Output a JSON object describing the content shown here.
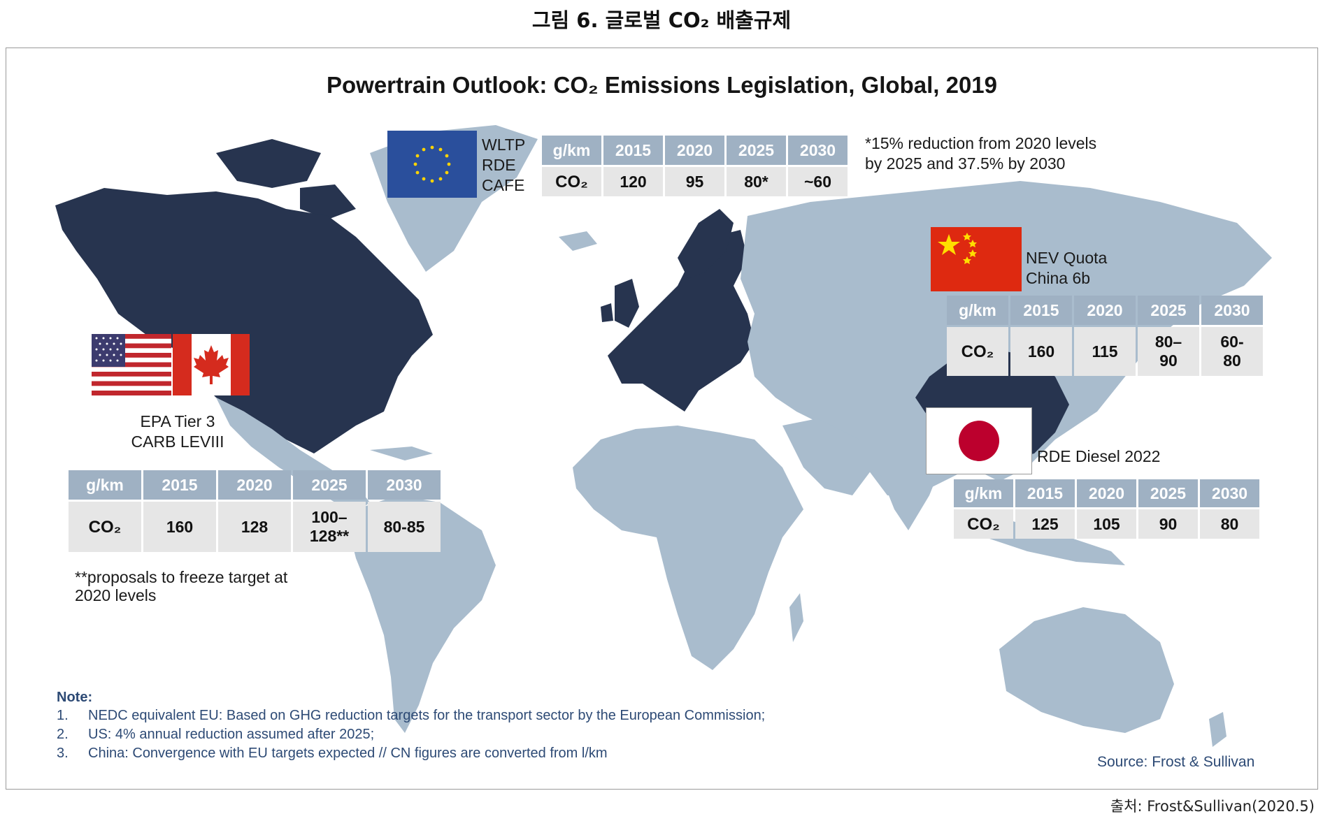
{
  "figure_title": "그림 6. 글로벌 CO₂ 배출규제",
  "chart_title": "Powertrain Outlook: CO₂ Emissions Legislation, Global, 2019",
  "colors": {
    "regulated": "#27344f",
    "land": "#a9bccd",
    "header": "#9fb1c3",
    "cell": "#e6e6e6",
    "note_text": "#2d4a75"
  },
  "eu": {
    "labels": [
      "WLTP",
      "RDE",
      "CAFE"
    ],
    "table": {
      "header": [
        "g/km",
        "2015",
        "2020",
        "2025",
        "2030"
      ],
      "row": [
        "CO₂",
        "120",
        "95",
        "80*",
        "~60"
      ]
    },
    "note": [
      "*15% reduction from 2020 levels",
      "by 2025 and 37.5% by 2030"
    ]
  },
  "china": {
    "labels": [
      "NEV Quota",
      "China 6b"
    ],
    "table": {
      "header": [
        "g/km",
        "2015",
        "2020",
        "2025",
        "2030"
      ],
      "row": [
        "CO₂",
        "160",
        "115",
        "80–\n90",
        "60-\n80"
      ]
    }
  },
  "us_canada": {
    "labels": [
      "EPA Tier 3",
      "CARB LEVIII"
    ],
    "table": {
      "header": [
        "g/km",
        "2015",
        "2020",
        "2025",
        "2030"
      ],
      "row": [
        "CO₂",
        "160",
        "128",
        "100–\n128**",
        "80-85"
      ]
    },
    "note": [
      "**proposals to freeze target at",
      "2020 levels"
    ]
  },
  "japan": {
    "label": "RDE Diesel 2022",
    "table": {
      "header": [
        "g/km",
        "2015",
        "2020",
        "2025",
        "2030"
      ],
      "row": [
        "CO₂",
        "125",
        "105",
        "90",
        "80"
      ]
    }
  },
  "notes": {
    "heading": "Note:",
    "items": [
      {
        "num": "1.",
        "text": "NEDC equivalent EU: Based on GHG reduction targets for the transport sector by the European Commission;"
      },
      {
        "num": "2.",
        "text": "US: 4% annual reduction assumed after 2025;"
      },
      {
        "num": "3.",
        "text": "China: Convergence with EU targets expected // CN figures are converted from l/km"
      }
    ]
  },
  "source": "Source: Frost & Sullivan",
  "footer": "출처: Frost&Sullivan(2020.5)"
}
